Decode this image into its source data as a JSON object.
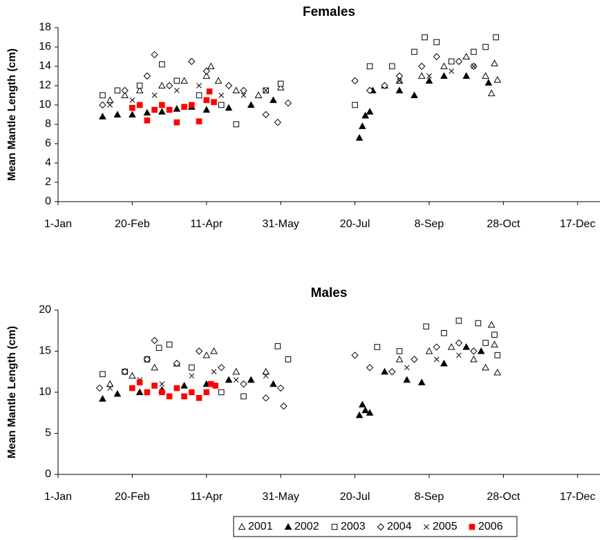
{
  "chart_data": [
    {
      "type": "scatter",
      "title": "Females",
      "y_label": "Mean Mantle Length (cm)",
      "xlim": [
        0,
        365
      ],
      "xticks": [
        {
          "value": 0,
          "label": "1-Jan"
        },
        {
          "value": 50,
          "label": "20-Feb"
        },
        {
          "value": 100,
          "label": "11-Apr"
        },
        {
          "value": 150,
          "label": "31-May"
        },
        {
          "value": 200,
          "label": "20-Jul"
        },
        {
          "value": 250,
          "label": "8-Sep"
        },
        {
          "value": 300,
          "label": "28-Oct"
        },
        {
          "value": 350,
          "label": "17-Dec"
        }
      ],
      "ylim": [
        0,
        18
      ],
      "yticks": [
        0,
        2,
        4,
        6,
        8,
        10,
        12,
        14,
        16,
        18
      ],
      "series": [
        {
          "name": "2001",
          "color": "#000000",
          "marker": "triangle-open",
          "x": [
            35,
            45,
            55,
            70,
            85,
            100,
            103,
            108,
            120,
            135,
            150,
            230,
            245,
            260,
            275,
            288,
            292,
            294,
            296
          ],
          "values": [
            10.5,
            11,
            11.5,
            12,
            12.5,
            13,
            14,
            12.5,
            11.5,
            11,
            11.8,
            12.5,
            13,
            14,
            15,
            13,
            11.2,
            14.3,
            12.6
          ]
        },
        {
          "name": "2002",
          "color": "#000000",
          "marker": "triangle-filled",
          "x": [
            30,
            40,
            50,
            60,
            70,
            80,
            90,
            100,
            115,
            130,
            145,
            203,
            205,
            207,
            210,
            212,
            220,
            230,
            240,
            250,
            260,
            275,
            290
          ],
          "values": [
            8.8,
            9,
            9,
            9.2,
            9.3,
            9.6,
            9.8,
            9.5,
            9.7,
            10,
            10.5,
            6.6,
            7.8,
            8.9,
            9.3,
            11.5,
            12,
            11.5,
            11,
            12.5,
            13,
            13,
            12.3
          ]
        },
        {
          "name": "2003",
          "color": "#000000",
          "marker": "square-open",
          "x": [
            30,
            40,
            55,
            70,
            80,
            95,
            110,
            120,
            140,
            150,
            200,
            210,
            225,
            240,
            247,
            255,
            265,
            280,
            288,
            295
          ],
          "values": [
            11,
            11.5,
            12,
            14.2,
            12.5,
            11,
            10,
            8,
            11.5,
            12.2,
            10,
            14,
            14,
            15.5,
            17,
            16.5,
            14.5,
            15.5,
            16,
            17
          ]
        },
        {
          "name": "2004",
          "color": "#000000",
          "marker": "diamond-open",
          "x": [
            30,
            45,
            60,
            65,
            75,
            90,
            100,
            115,
            125,
            140,
            148,
            155,
            200,
            210,
            220,
            230,
            245,
            255,
            270,
            280
          ],
          "values": [
            10,
            11.5,
            13,
            15.2,
            12,
            14.5,
            13.5,
            12,
            11.5,
            9,
            8.2,
            10.2,
            12.5,
            11.5,
            12,
            13,
            14,
            15,
            14.5,
            14
          ]
        },
        {
          "name": "2005",
          "color": "#000000",
          "marker": "cross",
          "x": [
            35,
            50,
            65,
            80,
            95,
            110,
            125,
            140,
            230,
            250,
            265,
            280
          ],
          "values": [
            10,
            10.5,
            11,
            11.5,
            12,
            11,
            11,
            11.5,
            12.5,
            13,
            13.5,
            14
          ]
        },
        {
          "name": "2006",
          "color": "#ff0000",
          "marker": "square-filled",
          "x": [
            50,
            55,
            60,
            65,
            70,
            75,
            80,
            85,
            90,
            95,
            100,
            102,
            105
          ],
          "values": [
            9.7,
            10,
            8.4,
            9.5,
            10,
            9.5,
            8.2,
            9.8,
            10,
            8.3,
            10.5,
            11.4,
            10.3
          ]
        }
      ]
    },
    {
      "type": "scatter",
      "title": "Males",
      "y_label": "Mean Mantle Length (cm)",
      "xlim": [
        0,
        365
      ],
      "xticks": [
        {
          "value": 0,
          "label": "1-Jan"
        },
        {
          "value": 50,
          "label": "20-Feb"
        },
        {
          "value": 100,
          "label": "11-Apr"
        },
        {
          "value": 150,
          "label": "31-May"
        },
        {
          "value": 200,
          "label": "20-Jul"
        },
        {
          "value": 250,
          "label": "8-Sep"
        },
        {
          "value": 300,
          "label": "28-Oct"
        },
        {
          "value": 350,
          "label": "17-Dec"
        }
      ],
      "ylim": [
        0,
        20
      ],
      "yticks": [
        0,
        5,
        10,
        15,
        20
      ],
      "series": [
        {
          "color": "#000000",
          "marker": "triangle-open",
          "x": [
            35,
            50,
            65,
            80,
            100,
            105,
            120,
            140,
            230,
            250,
            265,
            280,
            288,
            292,
            294,
            296
          ],
          "values": [
            11,
            12,
            13,
            13.5,
            14.5,
            15,
            12.5,
            12.5,
            14,
            15,
            15.5,
            14,
            13,
            18.2,
            15.8,
            12.4
          ]
        },
        {
          "color": "#000000",
          "marker": "triangle-filled",
          "x": [
            30,
            40,
            55,
            70,
            85,
            100,
            115,
            130,
            145,
            203,
            205,
            207,
            210,
            220,
            235,
            245,
            260,
            275,
            285
          ],
          "values": [
            9.2,
            9.8,
            10,
            10.3,
            10.8,
            11,
            11.5,
            11.5,
            11,
            7.2,
            8.5,
            7.8,
            7.5,
            12.5,
            11.5,
            11.2,
            13.5,
            15.5,
            15
          ]
        },
        {
          "color": "#000000",
          "marker": "square-open",
          "x": [
            30,
            45,
            60,
            68,
            75,
            90,
            110,
            125,
            148,
            155,
            215,
            230,
            248,
            260,
            270,
            283,
            288,
            294,
            296
          ],
          "values": [
            12.2,
            12.5,
            14,
            15.4,
            15.8,
            13,
            10,
            9.5,
            15.6,
            14,
            15.5,
            15,
            18,
            17.2,
            18.7,
            18.4,
            16,
            17,
            14.5
          ]
        },
        {
          "color": "#000000",
          "marker": "diamond-open",
          "x": [
            28,
            45,
            60,
            65,
            80,
            95,
            110,
            125,
            140,
            150,
            152,
            200,
            210,
            225,
            240,
            255,
            270,
            280
          ],
          "values": [
            10.5,
            12.5,
            14,
            16.3,
            13.5,
            15,
            13,
            11,
            9.3,
            10.5,
            8.3,
            14.5,
            13,
            12.5,
            14,
            15.5,
            16,
            15
          ]
        },
        {
          "color": "#000000",
          "marker": "cross",
          "x": [
            35,
            55,
            70,
            90,
            105,
            120,
            140,
            235,
            255,
            270
          ],
          "values": [
            10.5,
            11.5,
            11,
            12,
            12.5,
            11.5,
            12,
            13,
            14,
            14.5
          ]
        },
        {
          "color": "#ff0000",
          "marker": "square-filled",
          "x": [
            50,
            55,
            60,
            65,
            70,
            75,
            80,
            85,
            90,
            95,
            100,
            103,
            106
          ],
          "values": [
            10.5,
            11.2,
            10,
            10.8,
            10,
            9.5,
            10.5,
            9.5,
            10,
            9.3,
            10,
            11,
            10.8
          ]
        }
      ]
    }
  ]
}
